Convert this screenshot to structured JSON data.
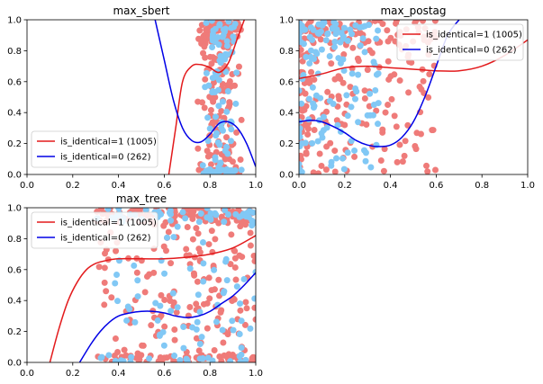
{
  "chart_data": [
    {
      "type": "scatter",
      "title": "max_sbert",
      "xlim": [
        0,
        1
      ],
      "ylim": [
        0,
        1
      ],
      "xticks": [
        "0.0",
        "0.2",
        "0.4",
        "0.6",
        "0.8",
        "1.0"
      ],
      "yticks": [
        "0.0",
        "0.2",
        "0.4",
        "0.6",
        "0.8",
        "1.0"
      ],
      "legend_position": "lower-left",
      "legend": [
        {
          "label": "is_identical=1 (1005)",
          "color": "#e31a1c"
        },
        {
          "label": "is_identical=0 (262)",
          "color": "#0000e6"
        }
      ],
      "series": [
        {
          "name": "is_identical=1 (1005)",
          "color": "#ef7b79",
          "x_range": [
            0.72,
            0.96
          ],
          "y_range": [
            0,
            1
          ],
          "count": 260,
          "shape": "hump"
        },
        {
          "name": "is_identical=0 (262)",
          "color": "#81c8f5",
          "x_range": [
            0.74,
            0.96
          ],
          "y_range": [
            0,
            1
          ],
          "count": 110,
          "shape": "hump"
        }
      ],
      "curves": [
        {
          "name": "is_identical=1 (1005)",
          "color": "#e31a1c",
          "x": [
            0.62,
            0.65,
            0.68,
            0.72,
            0.76,
            0.8,
            0.84,
            0.88,
            0.92,
            0.95
          ],
          "y": [
            0.0,
            0.3,
            0.6,
            0.7,
            0.71,
            0.69,
            0.66,
            0.72,
            0.88,
            1.0
          ]
        },
        {
          "name": "is_identical=0 (262)",
          "color": "#0000e6",
          "x": [
            0.56,
            0.6,
            0.64,
            0.68,
            0.72,
            0.76,
            0.8,
            0.84,
            0.88,
            0.92,
            0.96,
            1.0
          ],
          "y": [
            1.0,
            0.74,
            0.48,
            0.3,
            0.22,
            0.21,
            0.26,
            0.33,
            0.34,
            0.3,
            0.2,
            0.05
          ]
        }
      ]
    },
    {
      "type": "scatter",
      "title": "max_postag",
      "xlim": [
        0,
        1
      ],
      "ylim": [
        0,
        1
      ],
      "xticks": [
        "0.0",
        "0.2",
        "0.4",
        "0.6",
        "0.8",
        "1.0"
      ],
      "yticks": [
        "0.0",
        "0.2",
        "0.4",
        "0.6",
        "0.8",
        "1.0"
      ],
      "legend_position": "upper-right",
      "legend": [
        {
          "label": "is_identical=1 (1005)",
          "color": "#e31a1c"
        },
        {
          "label": "is_identical=0 (262)",
          "color": "#0000e6"
        }
      ],
      "series": [
        {
          "name": "is_identical=1 (1005)",
          "color": "#ef7b79",
          "x_range": [
            0.0,
            0.6
          ],
          "y_range": [
            0,
            1
          ],
          "count": 250,
          "shape": "left"
        },
        {
          "name": "is_identical=0 (262)",
          "color": "#81c8f5",
          "x_range": [
            0.0,
            0.35
          ],
          "y_range": [
            0,
            1
          ],
          "count": 140,
          "shape": "left"
        }
      ],
      "curves": [
        {
          "name": "is_identical=1 (1005)",
          "color": "#e31a1c",
          "x": [
            0.0,
            0.1,
            0.2,
            0.3,
            0.4,
            0.5,
            0.6,
            0.7,
            0.8,
            0.9,
            1.0
          ],
          "y": [
            0.62,
            0.65,
            0.69,
            0.7,
            0.69,
            0.68,
            0.67,
            0.67,
            0.7,
            0.77,
            0.87
          ]
        },
        {
          "name": "is_identical=0 (262)",
          "color": "#0000e6",
          "x": [
            0.0,
            0.05,
            0.1,
            0.15,
            0.2,
            0.25,
            0.3,
            0.35,
            0.4,
            0.45,
            0.5,
            0.55,
            0.6,
            0.65,
            0.7
          ],
          "y": [
            0.34,
            0.35,
            0.34,
            0.31,
            0.27,
            0.22,
            0.19,
            0.18,
            0.19,
            0.24,
            0.34,
            0.5,
            0.7,
            0.9,
            1.0
          ]
        }
      ]
    },
    {
      "type": "scatter",
      "title": "max_tree",
      "xlim": [
        0,
        1
      ],
      "ylim": [
        0,
        1
      ],
      "xticks": [
        "0.0",
        "0.2",
        "0.4",
        "0.6",
        "0.8",
        "1.0"
      ],
      "yticks": [
        "0.0",
        "0.2",
        "0.4",
        "0.6",
        "0.8",
        "1.0"
      ],
      "legend_position": "upper-left",
      "legend": [
        {
          "label": "is_identical=1 (1005)",
          "color": "#e31a1c"
        },
        {
          "label": "is_identical=0 (262)",
          "color": "#0000e6"
        }
      ],
      "series": [
        {
          "name": "is_identical=1 (1005)",
          "color": "#ef7b79",
          "x_range": [
            0.3,
            1.0
          ],
          "y_range": [
            0,
            1
          ],
          "count": 330,
          "shape": "spread"
        },
        {
          "name": "is_identical=0 (262)",
          "color": "#81c8f5",
          "x_range": [
            0.3,
            1.0
          ],
          "y_range": [
            0,
            1
          ],
          "count": 130,
          "shape": "spread"
        }
      ],
      "curves": [
        {
          "name": "is_identical=1 (1005)",
          "color": "#e31a1c",
          "x": [
            0.1,
            0.14,
            0.18,
            0.22,
            0.26,
            0.3,
            0.35,
            0.4,
            0.5,
            0.6,
            0.7,
            0.8,
            0.9,
            1.0
          ],
          "y": [
            0.0,
            0.22,
            0.4,
            0.52,
            0.6,
            0.64,
            0.66,
            0.67,
            0.67,
            0.67,
            0.68,
            0.7,
            0.74,
            0.82
          ]
        },
        {
          "name": "is_identical=0 (262)",
          "color": "#0000e6",
          "x": [
            0.23,
            0.28,
            0.32,
            0.36,
            0.4,
            0.45,
            0.5,
            0.55,
            0.6,
            0.65,
            0.7,
            0.75,
            0.8,
            0.85,
            0.9,
            0.95,
            1.0
          ],
          "y": [
            0.0,
            0.12,
            0.2,
            0.26,
            0.3,
            0.32,
            0.33,
            0.33,
            0.32,
            0.3,
            0.29,
            0.3,
            0.33,
            0.38,
            0.43,
            0.5,
            0.58
          ]
        }
      ]
    }
  ]
}
